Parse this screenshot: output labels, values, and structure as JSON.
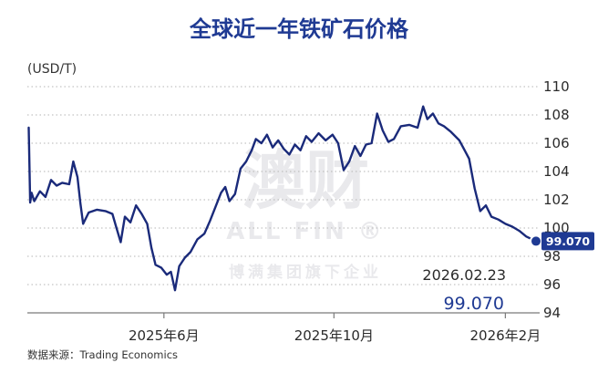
{
  "watermark": {
    "big": "澳财",
    "mid": "ALL FIN ®",
    "small": "博满集团旗下企业"
  },
  "chart_data": {
    "type": "line",
    "title": "全球近一年铁矿石价格",
    "ylabel": "(USD/T)",
    "xlabel": "",
    "ylim": [
      94,
      110
    ],
    "yticks": [
      94,
      96,
      98,
      100,
      102,
      104,
      106,
      108,
      110
    ],
    "xlim": [
      "2025-02-23",
      "2026-02-23"
    ],
    "xticks": [
      {
        "date": "2025-06-01",
        "label": "2025年6月"
      },
      {
        "date": "2025-10-01",
        "label": "2025年10月"
      },
      {
        "date": "2026-02-01",
        "label": "2026年2月"
      }
    ],
    "grid": true,
    "gridstyle": "dotted-horizontal",
    "legend": "none",
    "line_color": "#1a2a7a",
    "accent_color": "#1f3a93",
    "source": "数据来源：Trading Economics",
    "annotation": {
      "date_label": "2026.02.23",
      "value_label": "99.070"
    },
    "end_label": "99.070",
    "series": [
      {
        "values": [
          [
            "2025-02-24",
            107.1
          ],
          [
            "2025-02-25",
            101.8
          ],
          [
            "2025-02-26",
            102.5
          ],
          [
            "2025-02-28",
            101.9
          ],
          [
            "2025-03-04",
            102.6
          ],
          [
            "2025-03-08",
            102.2
          ],
          [
            "2025-03-12",
            103.4
          ],
          [
            "2025-03-16",
            103.0
          ],
          [
            "2025-03-20",
            103.2
          ],
          [
            "2025-03-25",
            103.1
          ],
          [
            "2025-03-28",
            104.7
          ],
          [
            "2025-03-31",
            103.6
          ],
          [
            "2025-04-02",
            101.8
          ],
          [
            "2025-04-04",
            100.3
          ],
          [
            "2025-04-08",
            101.1
          ],
          [
            "2025-04-14",
            101.3
          ],
          [
            "2025-04-20",
            101.2
          ],
          [
            "2025-04-25",
            101.0
          ],
          [
            "2025-04-28",
            100.0
          ],
          [
            "2025-05-01",
            99.0
          ],
          [
            "2025-05-04",
            100.8
          ],
          [
            "2025-05-08",
            100.4
          ],
          [
            "2025-05-12",
            101.6
          ],
          [
            "2025-05-16",
            101.0
          ],
          [
            "2025-05-20",
            100.3
          ],
          [
            "2025-05-23",
            98.6
          ],
          [
            "2025-05-26",
            97.4
          ],
          [
            "2025-05-30",
            97.2
          ],
          [
            "2025-06-03",
            96.7
          ],
          [
            "2025-06-06",
            96.9
          ],
          [
            "2025-06-09",
            95.6
          ],
          [
            "2025-06-12",
            97.3
          ],
          [
            "2025-06-16",
            97.9
          ],
          [
            "2025-06-20",
            98.3
          ],
          [
            "2025-06-25",
            99.2
          ],
          [
            "2025-06-30",
            99.6
          ],
          [
            "2025-07-04",
            100.5
          ],
          [
            "2025-07-08",
            101.5
          ],
          [
            "2025-07-12",
            102.5
          ],
          [
            "2025-07-15",
            102.9
          ],
          [
            "2025-07-18",
            101.9
          ],
          [
            "2025-07-22",
            102.4
          ],
          [
            "2025-07-26",
            104.2
          ],
          [
            "2025-07-30",
            104.7
          ],
          [
            "2025-08-03",
            105.5
          ],
          [
            "2025-08-06",
            106.3
          ],
          [
            "2025-08-10",
            106.0
          ],
          [
            "2025-08-14",
            106.6
          ],
          [
            "2025-08-18",
            105.7
          ],
          [
            "2025-08-22",
            106.2
          ],
          [
            "2025-08-26",
            105.6
          ],
          [
            "2025-08-30",
            105.2
          ],
          [
            "2025-09-03",
            105.9
          ],
          [
            "2025-09-07",
            105.5
          ],
          [
            "2025-09-11",
            106.5
          ],
          [
            "2025-09-15",
            106.1
          ],
          [
            "2025-09-20",
            106.7
          ],
          [
            "2025-09-25",
            106.2
          ],
          [
            "2025-09-30",
            106.6
          ],
          [
            "2025-10-04",
            106.0
          ],
          [
            "2025-10-08",
            104.1
          ],
          [
            "2025-10-12",
            104.7
          ],
          [
            "2025-10-16",
            105.8
          ],
          [
            "2025-10-20",
            105.1
          ],
          [
            "2025-10-24",
            105.9
          ],
          [
            "2025-10-28",
            106.0
          ],
          [
            "2025-11-01",
            108.1
          ],
          [
            "2025-11-05",
            106.9
          ],
          [
            "2025-11-09",
            106.1
          ],
          [
            "2025-11-13",
            106.3
          ],
          [
            "2025-11-18",
            107.2
          ],
          [
            "2025-11-24",
            107.3
          ],
          [
            "2025-11-30",
            107.1
          ],
          [
            "2025-12-04",
            108.6
          ],
          [
            "2025-12-07",
            107.7
          ],
          [
            "2025-12-11",
            108.1
          ],
          [
            "2025-12-15",
            107.4
          ],
          [
            "2025-12-19",
            107.2
          ],
          [
            "2025-12-24",
            106.8
          ],
          [
            "2025-12-30",
            106.2
          ],
          [
            "2026-01-06",
            104.9
          ],
          [
            "2026-01-10",
            102.8
          ],
          [
            "2026-01-14",
            101.2
          ],
          [
            "2026-01-18",
            101.6
          ],
          [
            "2026-01-22",
            100.8
          ],
          [
            "2026-01-27",
            100.6
          ],
          [
            "2026-02-01",
            100.3
          ],
          [
            "2026-02-06",
            100.1
          ],
          [
            "2026-02-11",
            99.8
          ],
          [
            "2026-02-16",
            99.4
          ],
          [
            "2026-02-23",
            99.07
          ]
        ]
      }
    ]
  }
}
